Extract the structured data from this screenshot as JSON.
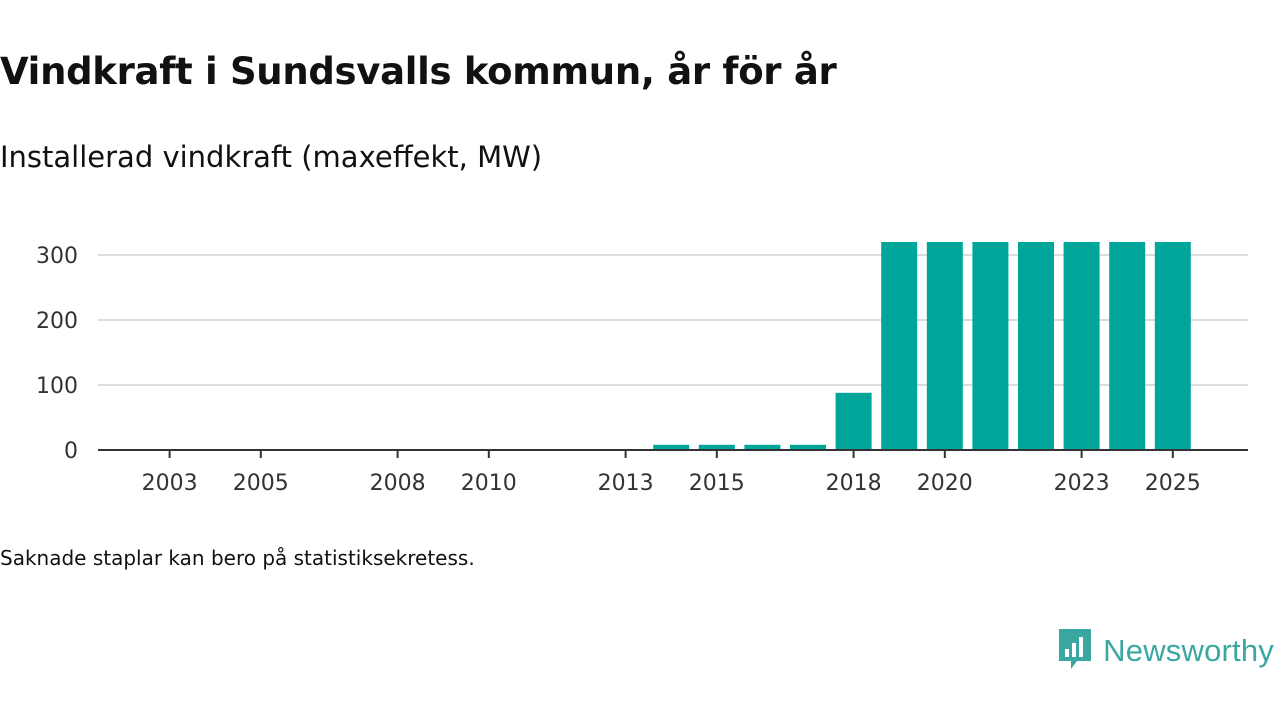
{
  "title": "Vindkraft i Sundsvalls kommun, år för år",
  "subtitle": "Installerad vindkraft (maxeffekt, MW)",
  "note": "Saknade staplar kan bero på statistiksekretess.",
  "brand": {
    "name": "Newsworthy",
    "icon": "newsworthy-logo-icon",
    "color": "#3aa7a2"
  },
  "chart_data": {
    "type": "bar",
    "title": "Vindkraft i Sundsvalls kommun, år för år",
    "ylabel": "Installerad vindkraft (maxeffekt, MW)",
    "xlabel": "",
    "bar_color": "#00a69a",
    "categories": [
      "2002",
      "2003",
      "2004",
      "2005",
      "2006",
      "2007",
      "2008",
      "2009",
      "2010",
      "2011",
      "2012",
      "2013",
      "2014",
      "2015",
      "2016",
      "2017",
      "2018",
      "2019",
      "2020",
      "2021",
      "2022",
      "2023",
      "2024",
      "2025"
    ],
    "values": [
      0,
      0,
      0,
      0,
      0,
      0,
      0,
      0,
      0,
      0,
      0,
      0,
      8,
      8,
      8,
      8,
      88,
      320,
      320,
      320,
      320,
      320,
      320,
      320
    ],
    "x_tick_labels": [
      "2003",
      "2005",
      "2008",
      "2010",
      "2013",
      "2015",
      "2018",
      "2020",
      "2023",
      "2025"
    ],
    "y_ticks": [
      0,
      100,
      200,
      300
    ],
    "ylim": [
      0,
      330
    ],
    "grid": true
  }
}
